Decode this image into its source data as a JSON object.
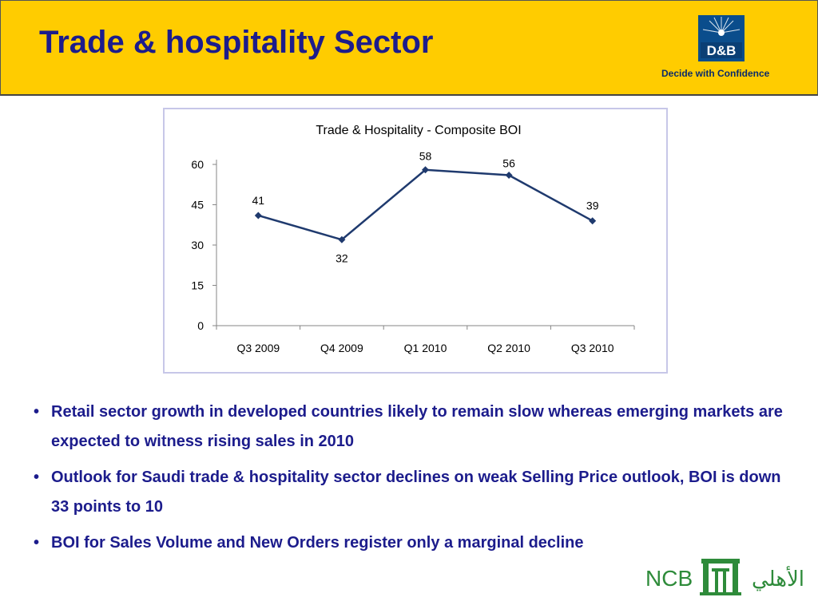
{
  "header": {
    "title": "Trade & hospitality Sector",
    "logo_text": "D&B",
    "tagline": "Decide with Confidence",
    "background_color": "#ffcc00",
    "title_color": "#1c1c8c"
  },
  "chart_data": {
    "type": "line",
    "title": "Trade & Hospitality -  Composite BOI",
    "categories": [
      "Q3 2009",
      "Q4 2009",
      "Q1 2010",
      "Q2 2010",
      "Q3 2010"
    ],
    "values": [
      41,
      32,
      58,
      56,
      39
    ],
    "data_labels": [
      "41",
      "32",
      "58",
      "56",
      "39"
    ],
    "y_ticks": [
      "0",
      "15",
      "30",
      "45",
      "60"
    ],
    "ylim": [
      0,
      60
    ],
    "xlabel": "",
    "ylabel": "",
    "grid": false,
    "legend": "none",
    "line_color": "#1f3a6e"
  },
  "bullets": [
    {
      "text": "Retail sector growth in developed countries likely to remain slow whereas emerging markets are expected to witness rising sales in 2010"
    },
    {
      "text": "Outlook for Saudi trade & hospitality sector declines on weak Selling Price outlook, BOI is down 33 points to 10"
    },
    {
      "text": "BOI for Sales Volume and New Orders register only a marginal decline"
    }
  ],
  "bullet_symbol": "•",
  "footer": {
    "logo_latin": "NCB",
    "logo_arabic": "الأهلي",
    "logo_color": "#2e8b3a"
  }
}
